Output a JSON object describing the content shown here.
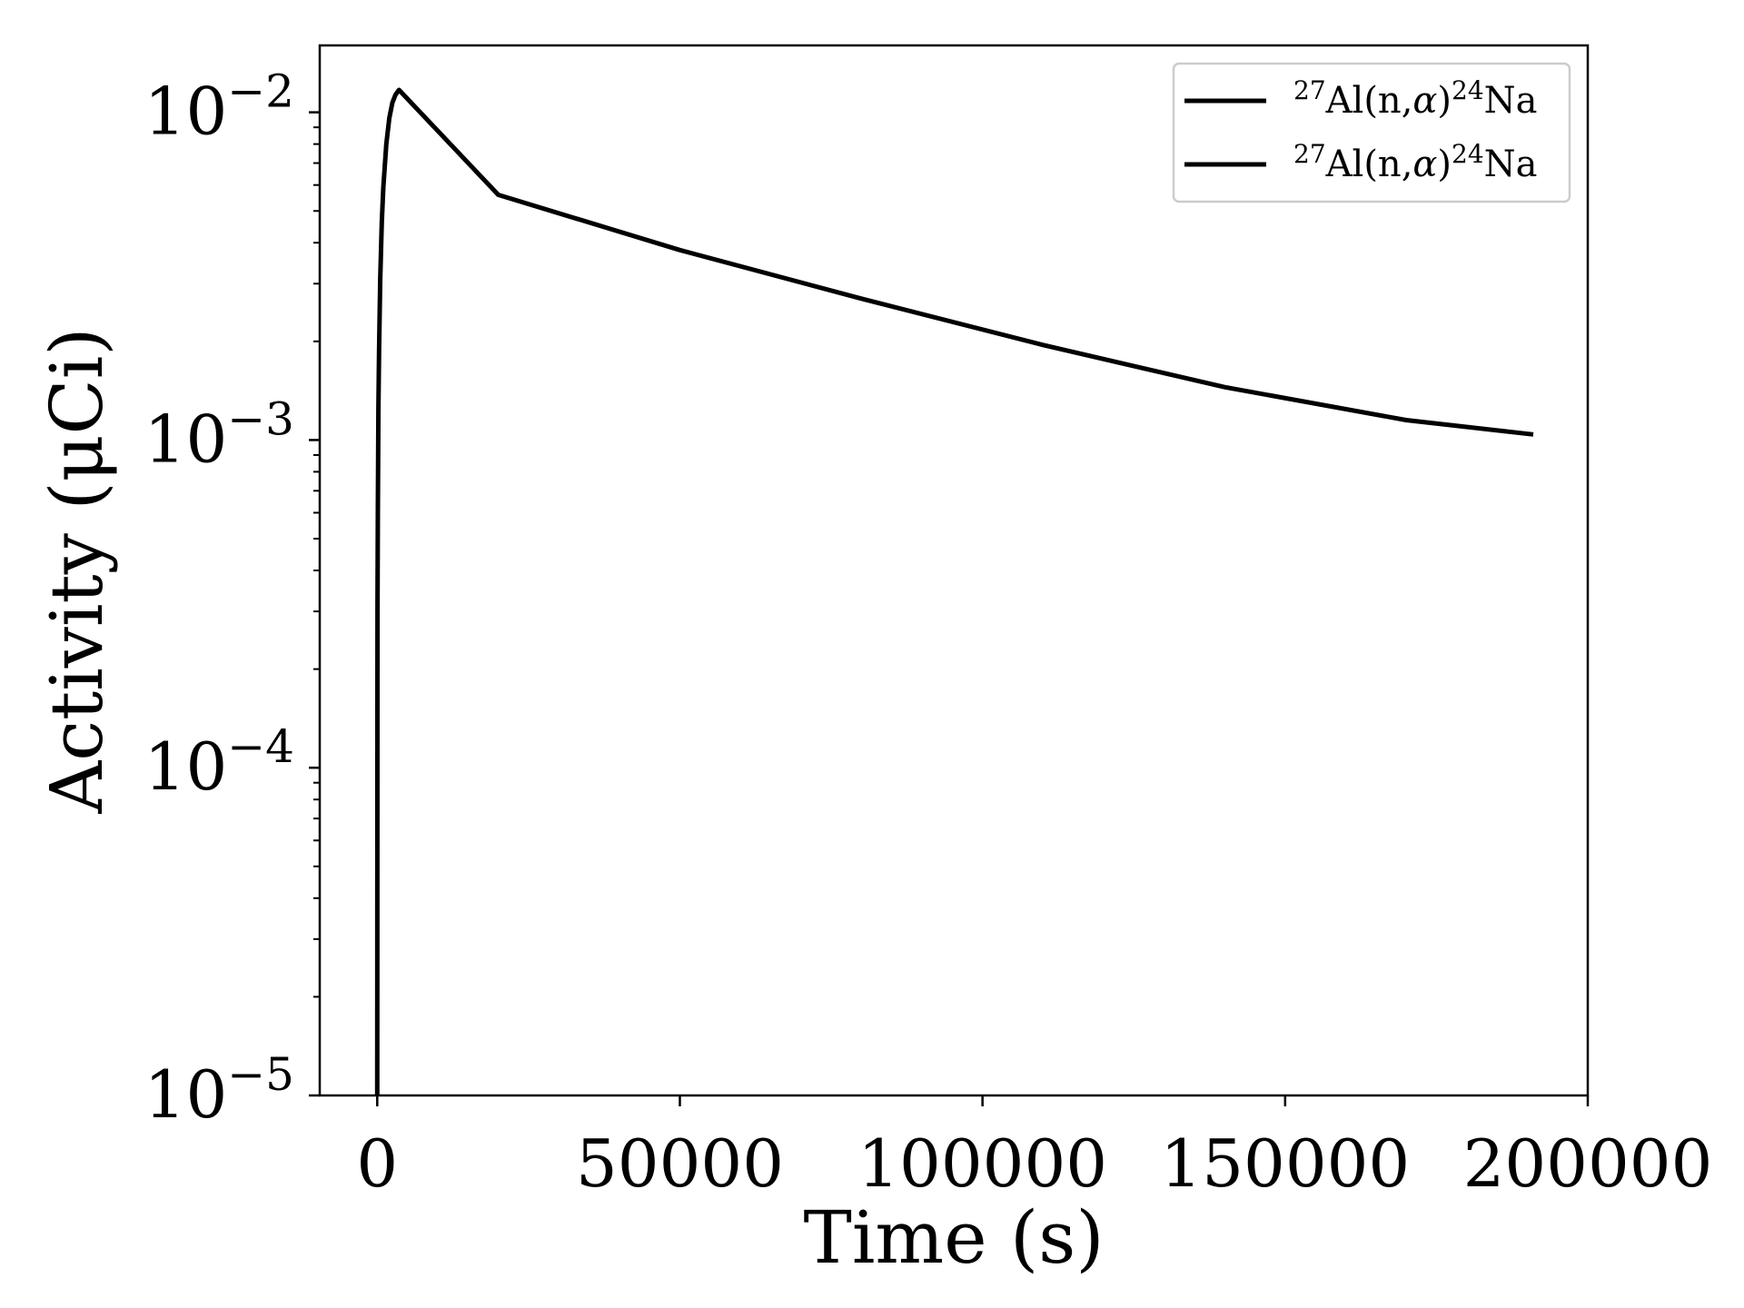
{
  "chart_data": {
    "type": "line",
    "xlabel": "Time (s)",
    "ylabel": "Activity (μCi)",
    "xscale": "linear",
    "yscale": "log",
    "xlim": [
      -9500,
      200000
    ],
    "ylim": [
      1e-05,
      0.016
    ],
    "x_ticks": [
      0,
      50000,
      100000,
      150000,
      200000
    ],
    "x_tick_labels": [
      "0",
      "50000",
      "100000",
      "150000",
      "200000"
    ],
    "y_ticks": [
      1e-05,
      0.0001,
      0.001,
      0.01
    ],
    "y_tick_labels": [
      {
        "base": "10",
        "exponent": "−5"
      },
      {
        "base": "10",
        "exponent": "−4"
      },
      {
        "base": "10",
        "exponent": "−3"
      },
      {
        "base": "10",
        "exponent": "−2"
      }
    ],
    "grid": false,
    "legend_position": "top-right",
    "legend": [
      {
        "pre": "27",
        "mid": "Al(n,",
        "greek": "α",
        "post": ")",
        "sup": "24",
        "end": "Na",
        "color": "#000000"
      },
      {
        "pre": "27",
        "mid": "Al(n,",
        "greek": "α",
        "post": ")",
        "sup": "24",
        "end": "Na",
        "color": "#000000"
      }
    ],
    "series": [
      {
        "color": "#000000",
        "x": [
          0,
          25,
          50,
          100,
          200,
          300,
          500,
          750,
          1000,
          1500,
          2000,
          2500,
          3000,
          3600,
          20000,
          50000,
          80000,
          110000,
          140000,
          170000,
          191000
        ],
        "y": [
          1e-05,
          0.00015,
          0.00031,
          0.00062,
          0.00125,
          0.00185,
          0.0031,
          0.0046,
          0.0059,
          0.008,
          0.0096,
          0.0107,
          0.0113,
          0.0117,
          0.0056,
          0.0038,
          0.0027,
          0.00195,
          0.00145,
          0.00115,
          0.00104
        ]
      }
    ]
  }
}
